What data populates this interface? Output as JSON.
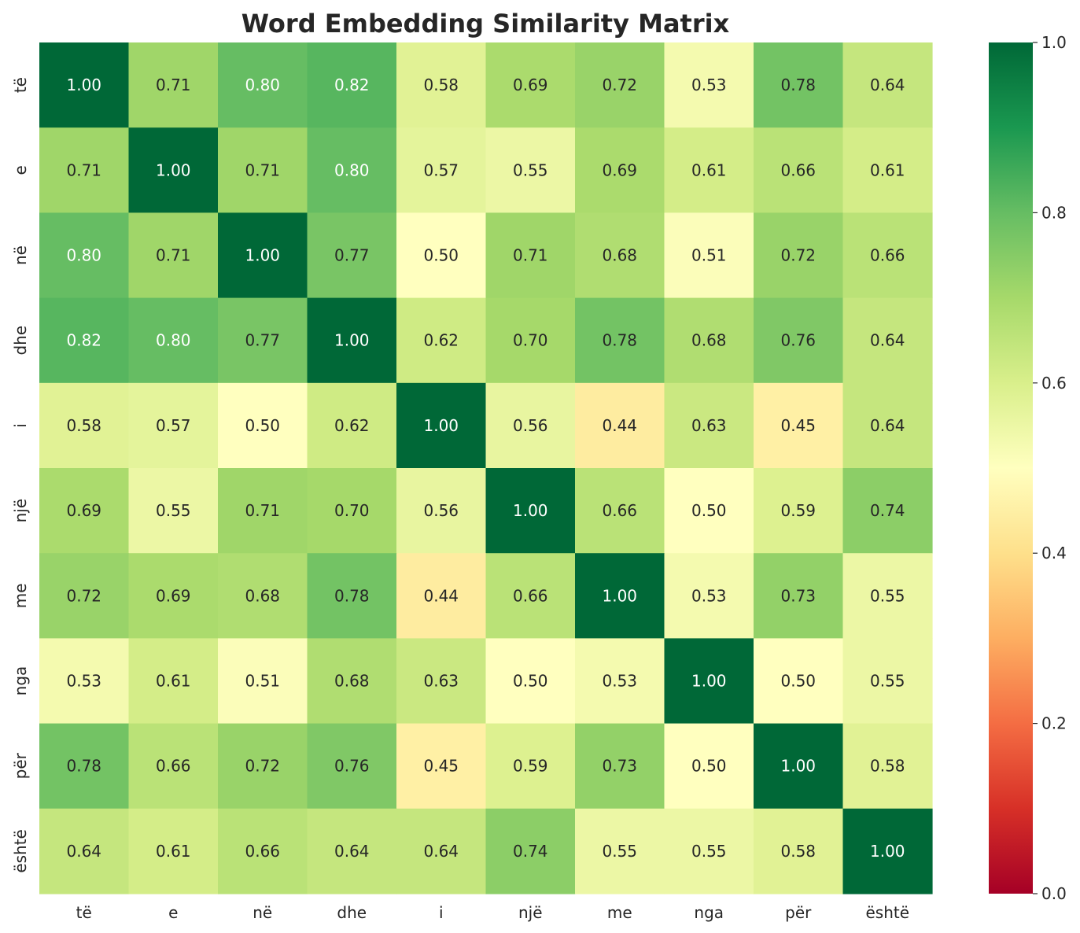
{
  "chart_data": {
    "type": "heatmap",
    "title": "Word Embedding Similarity Matrix",
    "xlabel": "",
    "ylabel": "",
    "x_labels": [
      "të",
      "e",
      "në",
      "dhe",
      "i",
      "një",
      "me",
      "nga",
      "për",
      "është"
    ],
    "y_labels": [
      "të",
      "e",
      "në",
      "dhe",
      "i",
      "një",
      "me",
      "nga",
      "për",
      "është"
    ],
    "values": [
      [
        1.0,
        0.71,
        0.8,
        0.82,
        0.58,
        0.69,
        0.72,
        0.53,
        0.78,
        0.64
      ],
      [
        0.71,
        1.0,
        0.71,
        0.8,
        0.57,
        0.55,
        0.69,
        0.61,
        0.66,
        0.61
      ],
      [
        0.8,
        0.71,
        1.0,
        0.77,
        0.5,
        0.71,
        0.68,
        0.51,
        0.72,
        0.66
      ],
      [
        0.82,
        0.8,
        0.77,
        1.0,
        0.62,
        0.7,
        0.78,
        0.68,
        0.76,
        0.64
      ],
      [
        0.58,
        0.57,
        0.5,
        0.62,
        1.0,
        0.56,
        0.44,
        0.63,
        0.45,
        0.64
      ],
      [
        0.69,
        0.55,
        0.71,
        0.7,
        0.56,
        1.0,
        0.66,
        0.5,
        0.59,
        0.74
      ],
      [
        0.72,
        0.69,
        0.68,
        0.78,
        0.44,
        0.66,
        1.0,
        0.53,
        0.73,
        0.55
      ],
      [
        0.53,
        0.61,
        0.51,
        0.68,
        0.63,
        0.5,
        0.53,
        1.0,
        0.5,
        0.55
      ],
      [
        0.78,
        0.66,
        0.72,
        0.76,
        0.45,
        0.59,
        0.73,
        0.5,
        1.0,
        0.58
      ],
      [
        0.64,
        0.61,
        0.66,
        0.64,
        0.64,
        0.74,
        0.55,
        0.55,
        0.58,
        1.0
      ]
    ],
    "value_format": "0.00",
    "colormap": "RdYlGn",
    "color_range": [
      0.0,
      1.0
    ],
    "colorbar_ticks": [
      "0.0",
      "0.2",
      "0.4",
      "0.6",
      "0.8",
      "1.0"
    ],
    "colorbar_placement": "right",
    "grid": false
  }
}
